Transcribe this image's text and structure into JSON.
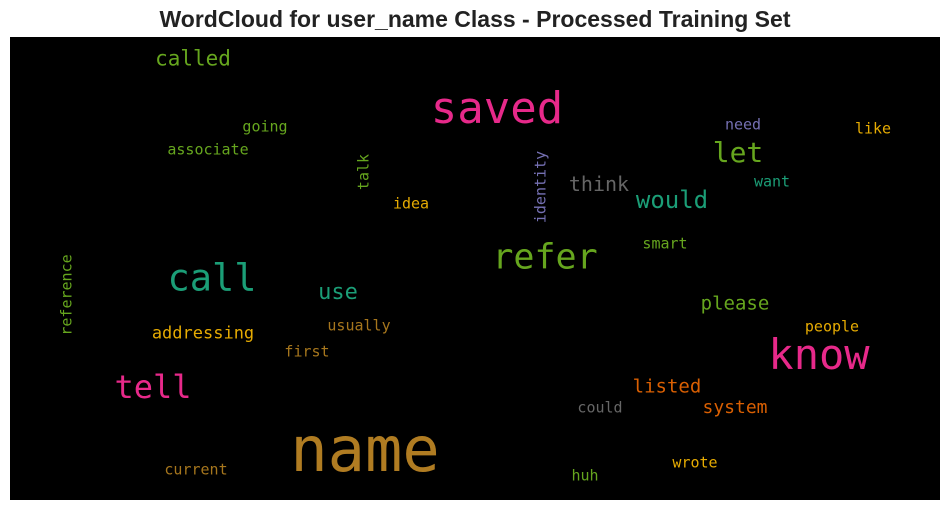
{
  "chart_data": {
    "type": "wordcloud",
    "title": "WordCloud for user_name Class - Processed Training Set",
    "background": "#000000",
    "words": [
      {
        "text": "name",
        "color": "#b07c22",
        "weight": 1.0
      },
      {
        "text": "saved",
        "color": "#e7298a",
        "weight": 0.75
      },
      {
        "text": "know",
        "color": "#e7298a",
        "weight": 0.72
      },
      {
        "text": "call",
        "color": "#1b9e77",
        "weight": 0.62
      },
      {
        "text": "refer",
        "color": "#66a61e",
        "weight": 0.6
      },
      {
        "text": "tell",
        "color": "#e7298a",
        "weight": 0.55
      },
      {
        "text": "let",
        "color": "#66a61e",
        "weight": 0.48
      },
      {
        "text": "would",
        "color": "#1b9e77",
        "weight": 0.42
      },
      {
        "text": "use",
        "color": "#1b9e77",
        "weight": 0.38
      },
      {
        "text": "called",
        "color": "#66a61e",
        "weight": 0.36
      },
      {
        "text": "think",
        "color": "#666666",
        "weight": 0.34
      },
      {
        "text": "listed",
        "color": "#d95f02",
        "weight": 0.33
      },
      {
        "text": "please",
        "color": "#66a61e",
        "weight": 0.32
      },
      {
        "text": "system",
        "color": "#d95f02",
        "weight": 0.31
      },
      {
        "text": "addressing",
        "color": "#e6ab02",
        "weight": 0.29
      },
      {
        "text": "reference",
        "color": "#66a61e",
        "weight": 0.27
      },
      {
        "text": "identity",
        "color": "#7570b3",
        "weight": 0.27
      },
      {
        "text": "going",
        "color": "#66a61e",
        "weight": 0.26
      },
      {
        "text": "associate",
        "color": "#66a61e",
        "weight": 0.26
      },
      {
        "text": "usually",
        "color": "#a6761d",
        "weight": 0.25
      },
      {
        "text": "first",
        "color": "#a6761d",
        "weight": 0.25
      },
      {
        "text": "could",
        "color": "#666666",
        "weight": 0.25
      },
      {
        "text": "current",
        "color": "#a6761d",
        "weight": 0.25
      },
      {
        "text": "wrote",
        "color": "#e6ab02",
        "weight": 0.25
      },
      {
        "text": "people",
        "color": "#e6ab02",
        "weight": 0.25
      },
      {
        "text": "like",
        "color": "#e6ab02",
        "weight": 0.25
      },
      {
        "text": "need",
        "color": "#7570b3",
        "weight": 0.24
      },
      {
        "text": "want",
        "color": "#1b9e77",
        "weight": 0.24
      },
      {
        "text": "smart",
        "color": "#66a61e",
        "weight": 0.24
      },
      {
        "text": "idea",
        "color": "#e6ab02",
        "weight": 0.24
      },
      {
        "text": "talk",
        "color": "#66a61e",
        "weight": 0.24
      },
      {
        "text": "huh",
        "color": "#66a61e",
        "weight": 0.24
      }
    ]
  }
}
